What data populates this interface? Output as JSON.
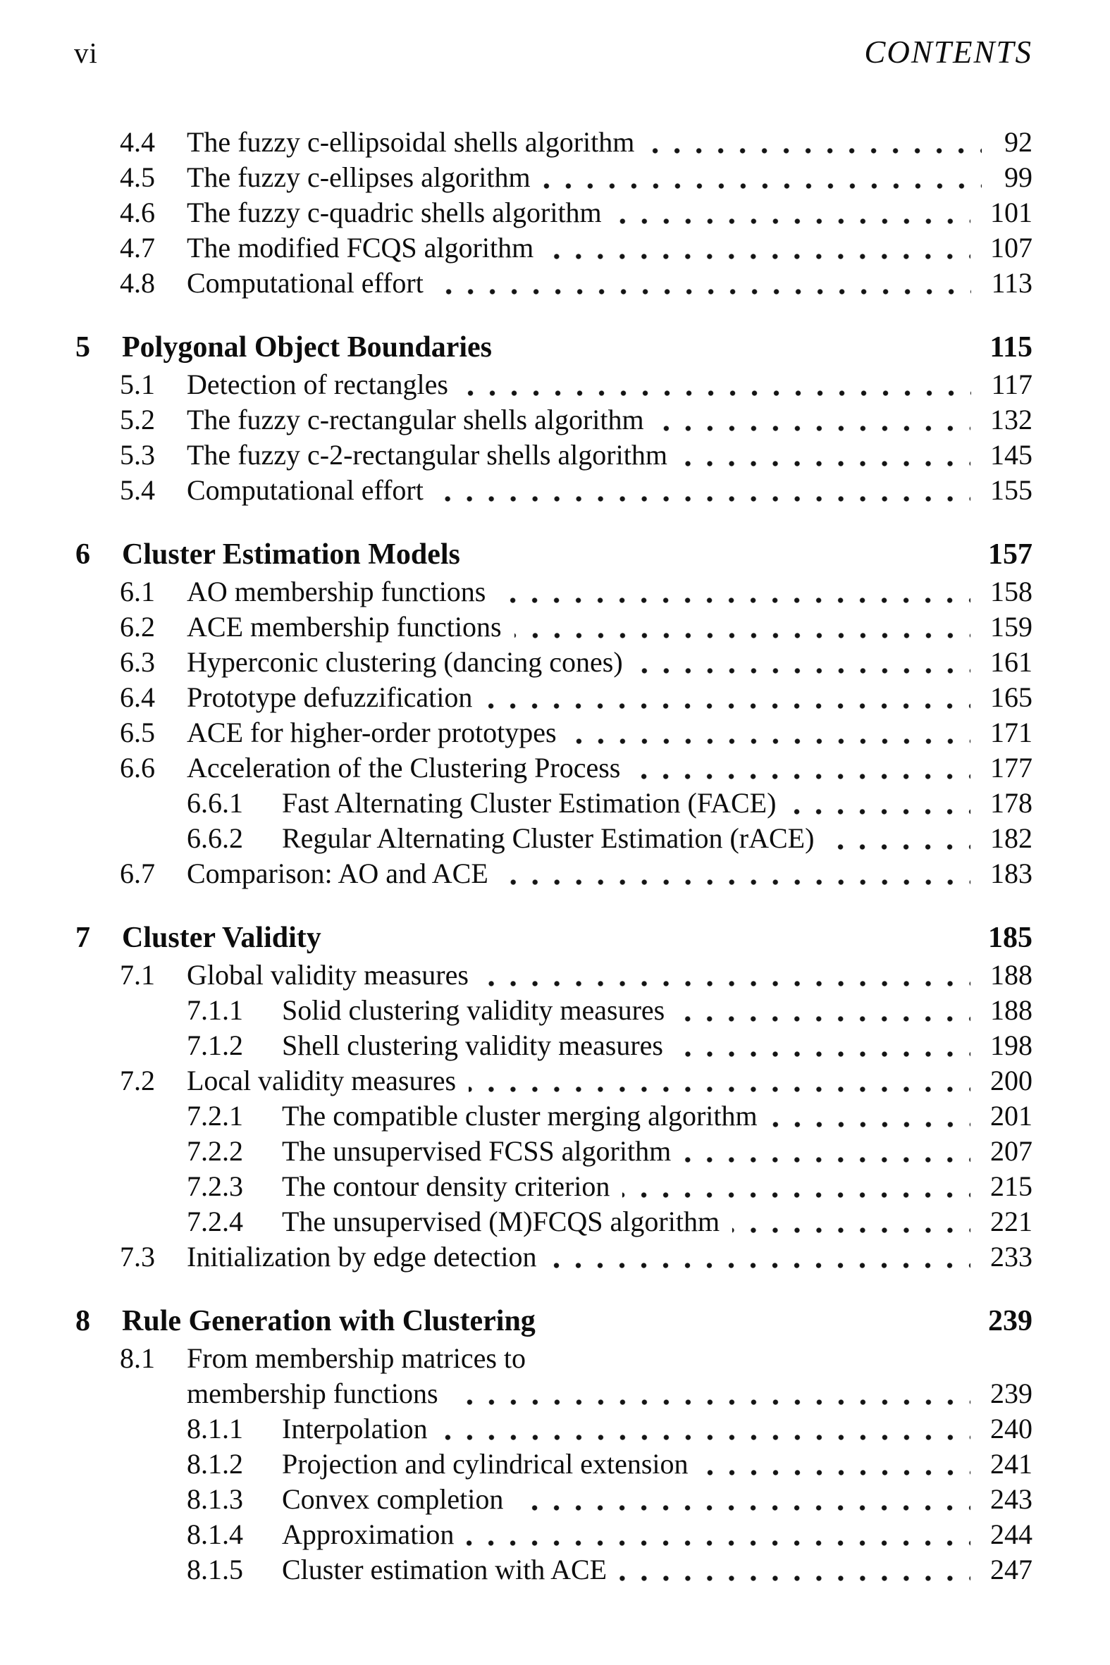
{
  "header": {
    "left": "vi",
    "right": "CONTENTS"
  },
  "colors": {
    "ink": "#0d0d0d",
    "paper": "#ffffff"
  },
  "toc": {
    "entries": [
      {
        "level": "section",
        "number": "4.4",
        "title": "The fuzzy c-ellipsoidal shells algorithm",
        "page": "92"
      },
      {
        "level": "section",
        "number": "4.5",
        "title": "The fuzzy c-ellipses algorithm",
        "page": "99"
      },
      {
        "level": "section",
        "number": "4.6",
        "title": "The fuzzy c-quadric shells algorithm",
        "page": "101"
      },
      {
        "level": "section",
        "number": "4.7",
        "title": "The modified FCQS algorithm",
        "page": "107"
      },
      {
        "level": "section",
        "number": "4.8",
        "title": "Computational effort",
        "page": "113"
      },
      {
        "level": "chapter",
        "number": "5",
        "title": "Polygonal Object Boundaries",
        "page": "115"
      },
      {
        "level": "section",
        "number": "5.1",
        "title": "Detection of rectangles",
        "page": "117"
      },
      {
        "level": "section",
        "number": "5.2",
        "title": "The fuzzy c-rectangular shells algorithm",
        "page": "132"
      },
      {
        "level": "section",
        "number": "5.3",
        "title": "The fuzzy c-2-rectangular shells algorithm",
        "page": "145"
      },
      {
        "level": "section",
        "number": "5.4",
        "title": "Computational effort",
        "page": "155"
      },
      {
        "level": "chapter",
        "number": "6",
        "title": "Cluster Estimation Models",
        "page": "157"
      },
      {
        "level": "section",
        "number": "6.1",
        "title": "AO membership functions",
        "page": "158"
      },
      {
        "level": "section",
        "number": "6.2",
        "title": "ACE membership functions",
        "page": "159"
      },
      {
        "level": "section",
        "number": "6.3",
        "title": "Hyperconic clustering (dancing cones)",
        "page": "161"
      },
      {
        "level": "section",
        "number": "6.4",
        "title": "Prototype defuzzification",
        "page": "165"
      },
      {
        "level": "section",
        "number": "6.5",
        "title": "ACE for higher-order prototypes",
        "page": "171"
      },
      {
        "level": "section",
        "number": "6.6",
        "title": "Acceleration of the Clustering Process",
        "page": "177"
      },
      {
        "level": "subsection",
        "number": "6.6.1",
        "title": "Fast Alternating Cluster Estimation (FACE)",
        "page": "178"
      },
      {
        "level": "subsection",
        "number": "6.6.2",
        "title": "Regular Alternating Cluster Estimation (rACE)",
        "page": "182"
      },
      {
        "level": "section",
        "number": "6.7",
        "title": "Comparison: AO and ACE",
        "page": "183"
      },
      {
        "level": "chapter",
        "number": "7",
        "title": "Cluster Validity",
        "page": "185"
      },
      {
        "level": "section",
        "number": "7.1",
        "title": "Global validity measures",
        "page": "188"
      },
      {
        "level": "subsection",
        "number": "7.1.1",
        "title": "Solid clustering validity measures",
        "page": "188"
      },
      {
        "level": "subsection",
        "number": "7.1.2",
        "title": "Shell clustering validity measures",
        "page": "198"
      },
      {
        "level": "section",
        "number": "7.2",
        "title": "Local validity measures",
        "page": "200"
      },
      {
        "level": "subsection",
        "number": "7.2.1",
        "title": "The compatible cluster merging algorithm",
        "page": "201"
      },
      {
        "level": "subsection",
        "number": "7.2.2",
        "title": "The unsupervised FCSS algorithm",
        "page": "207"
      },
      {
        "level": "subsection",
        "number": "7.2.3",
        "title": "The contour density criterion",
        "page": "215"
      },
      {
        "level": "subsection",
        "number": "7.2.4",
        "title": "The unsupervised (M)FCQS algorithm",
        "page": "221"
      },
      {
        "level": "section",
        "number": "7.3",
        "title": "Initialization by edge detection",
        "page": "233"
      },
      {
        "level": "chapter",
        "number": "8",
        "title": "Rule Generation with Clustering",
        "page": "239"
      },
      {
        "level": "section",
        "number": "8.1",
        "title": "From membership matrices to",
        "page": ""
      },
      {
        "level": "continuation",
        "number": "",
        "title": "membership functions",
        "page": "239"
      },
      {
        "level": "subsection",
        "number": "8.1.1",
        "title": "Interpolation",
        "page": "240"
      },
      {
        "level": "subsection",
        "number": "8.1.2",
        "title": "Projection and cylindrical extension",
        "page": "241"
      },
      {
        "level": "subsection",
        "number": "8.1.3",
        "title": "Convex completion",
        "page": "243"
      },
      {
        "level": "subsection",
        "number": "8.1.4",
        "title": "Approximation",
        "page": "244"
      },
      {
        "level": "subsection",
        "number": "8.1.5",
        "title": "Cluster estimation with ACE",
        "page": "247"
      }
    ]
  }
}
